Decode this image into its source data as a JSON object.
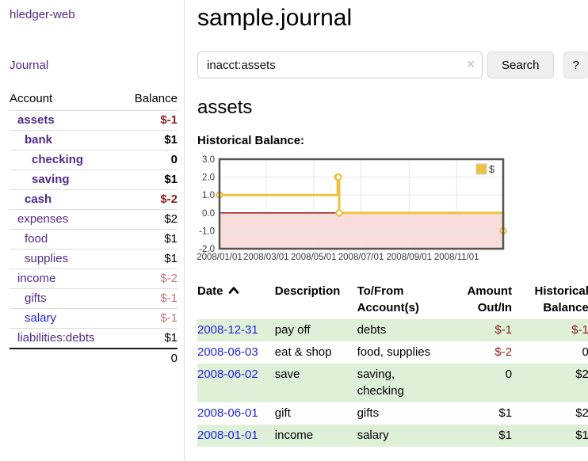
{
  "colors": {
    "link_purple": "#512b8a",
    "link_blue": "#2323d9",
    "neg_strong": "#8f1d1d",
    "neg_soft": "#c17878",
    "row_green": "#dff0d8",
    "grid": "#e8e8e8",
    "sidebar_divider": "#dddddd",
    "button_bg": "#efefef"
  },
  "sidebar": {
    "app_title": "hledger-web",
    "nav": {
      "journal": "Journal"
    },
    "balance_table": {
      "account_header": "Account",
      "balance_header": "Balance",
      "rows": [
        {
          "name": "assets",
          "balance": "$-1",
          "depth": 1,
          "bold": true,
          "negative": true
        },
        {
          "name": "bank",
          "balance": "$1",
          "depth": 2,
          "bold": true,
          "negative": false
        },
        {
          "name": "checking",
          "balance": "0",
          "depth": 3,
          "bold": true,
          "negative": false
        },
        {
          "name": "saving",
          "balance": "$1",
          "depth": 3,
          "bold": true,
          "negative": false
        },
        {
          "name": "cash",
          "balance": "$-2",
          "depth": 2,
          "bold": true,
          "negative": true
        },
        {
          "name": "expenses",
          "balance": "$2",
          "depth": 1,
          "bold": false,
          "negative": false
        },
        {
          "name": "food",
          "balance": "$1",
          "depth": 2,
          "bold": false,
          "negative": false
        },
        {
          "name": "supplies",
          "balance": "$1",
          "depth": 2,
          "bold": false,
          "negative": false
        },
        {
          "name": "income",
          "balance": "$-2",
          "depth": 1,
          "bold": false,
          "negative": true
        },
        {
          "name": "gifts",
          "balance": "$-1",
          "depth": 2,
          "bold": false,
          "negative": true
        },
        {
          "name": "salary",
          "balance": "$-1",
          "depth": 2,
          "bold": false,
          "negative": true
        },
        {
          "name": "liabilities:debts",
          "balance": "$1",
          "depth": 1,
          "bold": false,
          "negative": false
        }
      ],
      "total": "0"
    }
  },
  "header": {
    "title": "sample.journal"
  },
  "search": {
    "value": "inacct:assets",
    "clear_icon": "×",
    "search_button": "Search",
    "help_button": "?"
  },
  "account_page": {
    "heading": "assets",
    "chart_title": "Historical Balance:"
  },
  "chart_data": {
    "type": "line",
    "steps": true,
    "title": "Historical Balance",
    "x_range": [
      "2008-01-01",
      "2008-12-31"
    ],
    "ylim": [
      -2,
      3
    ],
    "grid": true,
    "legend_position": "top-right",
    "x_ticks": [
      {
        "date": "2008-01-01",
        "label": "2008/01/01"
      },
      {
        "date": "2008-03-01",
        "label": "2008/03/01"
      },
      {
        "date": "2008-05-01",
        "label": "2008/05/01"
      },
      {
        "date": "2008-07-01",
        "label": "2008/07/01"
      },
      {
        "date": "2008-09-01",
        "label": "2008/09/01"
      },
      {
        "date": "2008-11-01",
        "label": "2008/11/01"
      }
    ],
    "y_ticks": [
      {
        "value": 3,
        "label": "3.0"
      },
      {
        "value": 2,
        "label": "2.0"
      },
      {
        "value": 1,
        "label": "1.0"
      },
      {
        "value": 0,
        "label": "0.0"
      },
      {
        "value": -1,
        "label": "-1.0"
      },
      {
        "value": -2,
        "label": "-2.0"
      }
    ],
    "series": [
      {
        "name": "$",
        "color": "#edc240",
        "points": [
          [
            "2008-01-01",
            1
          ],
          [
            "2008-06-01",
            2
          ],
          [
            "2008-06-02",
            2
          ],
          [
            "2008-06-03",
            0
          ],
          [
            "2008-12-31",
            -1
          ]
        ]
      }
    ],
    "below_zero_fill": "#f9dcdc",
    "zero_line_color": "#8b0000",
    "border_color": "#545454"
  },
  "register": {
    "headers": {
      "date": "Date",
      "description": "Description",
      "accounts": "To/From Account(s)",
      "amount": "Amount Out/In",
      "balance": "Historical Balance"
    },
    "sort": {
      "column": "date",
      "direction": "ascending"
    },
    "rows": [
      {
        "date": "2008-12-31",
        "description": "pay off",
        "accounts": "debts",
        "amount": "$-1",
        "balance": "$-1",
        "amount_negative": true,
        "balance_negative": true
      },
      {
        "date": "2008-06-03",
        "description": "eat & shop",
        "accounts": "food, supplies",
        "amount": "$-2",
        "balance": "0",
        "amount_negative": true,
        "balance_negative": false
      },
      {
        "date": "2008-06-02",
        "description": "save",
        "accounts": "saving,\nchecking",
        "amount": "0",
        "balance": "$2",
        "amount_negative": false,
        "balance_negative": false
      },
      {
        "date": "2008-06-01",
        "description": "gift",
        "accounts": "gifts",
        "amount": "$1",
        "balance": "$2",
        "amount_negative": false,
        "balance_negative": false
      },
      {
        "date": "2008-01-01",
        "description": "income",
        "accounts": "salary",
        "amount": "$1",
        "balance": "$1",
        "amount_negative": false,
        "balance_negative": false
      }
    ]
  }
}
